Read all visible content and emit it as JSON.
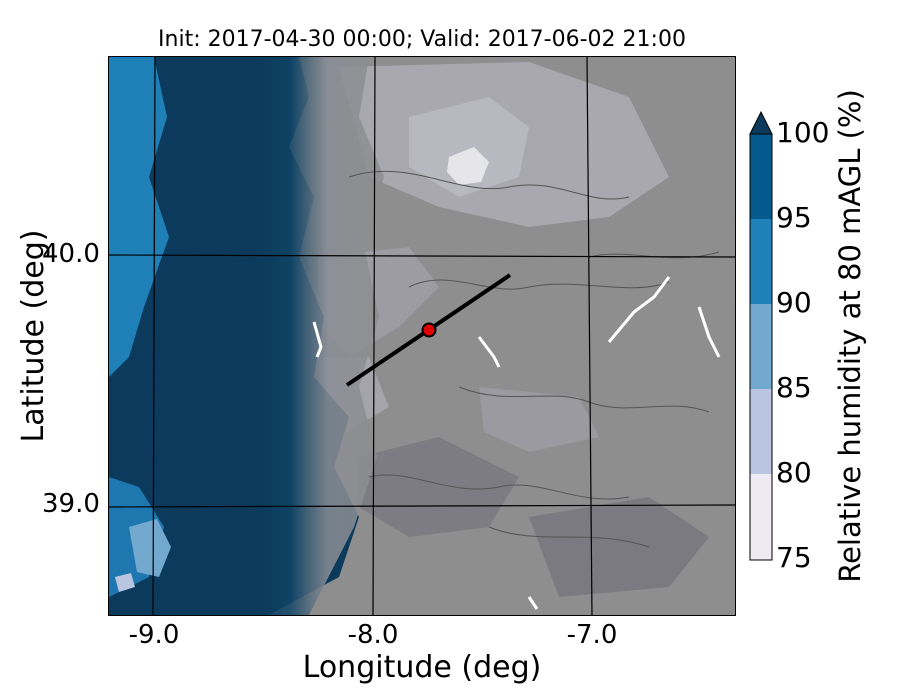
{
  "title": "Init: 2017-04-30 00:00; Valid: 2017-06-02 21:00",
  "axes": {
    "xlabel": "Longitude (deg)",
    "ylabel": "Latitude (deg)",
    "xticks": [
      "-9.0",
      "-8.0",
      "-7.0"
    ],
    "yticks": [
      "40.0",
      "39.0"
    ]
  },
  "colorbar": {
    "label": "Relative humidity at 80 mAGL (%)",
    "ticks": [
      "100",
      "95",
      "90",
      "85",
      "80",
      "75"
    ],
    "levels": [
      75,
      80,
      85,
      90,
      95,
      100
    ],
    "colors": [
      "#efe9f4",
      "#bac6e1",
      "#74a9cf",
      "#2080b8",
      "#045a8d",
      "#0b3a5c"
    ],
    "extend": "max"
  },
  "map": {
    "land_base_color": "#8e8e8e",
    "cross_section_line": {
      "start": [
        -8.12,
        39.48
      ],
      "end": [
        -7.38,
        39.92
      ]
    },
    "marker": {
      "lon": -7.75,
      "lat": 39.68,
      "color": "#e00000"
    }
  }
}
